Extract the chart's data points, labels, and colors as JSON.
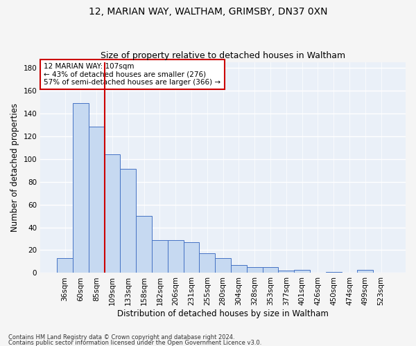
{
  "title1": "12, MARIAN WAY, WALTHAM, GRIMSBY, DN37 0XN",
  "title2": "Size of property relative to detached houses in Waltham",
  "xlabel": "Distribution of detached houses by size in Waltham",
  "ylabel": "Number of detached properties",
  "footer1": "Contains HM Land Registry data © Crown copyright and database right 2024.",
  "footer2": "Contains public sector information licensed under the Open Government Licence v3.0.",
  "categories": [
    "36sqm",
    "60sqm",
    "85sqm",
    "109sqm",
    "133sqm",
    "158sqm",
    "182sqm",
    "206sqm",
    "231sqm",
    "255sqm",
    "280sqm",
    "304sqm",
    "328sqm",
    "353sqm",
    "377sqm",
    "401sqm",
    "426sqm",
    "450sqm",
    "474sqm",
    "499sqm",
    "523sqm"
  ],
  "values": [
    13,
    149,
    128,
    104,
    91,
    50,
    29,
    29,
    27,
    17,
    13,
    7,
    5,
    5,
    2,
    3,
    0,
    1,
    0,
    3,
    0
  ],
  "bar_color": "#c6d9f1",
  "bar_edge_color": "#4472c4",
  "vline_color": "#cc0000",
  "annotation_text": "12 MARIAN WAY: 107sqm\n← 43% of detached houses are smaller (276)\n57% of semi-detached houses are larger (366) →",
  "annotation_box_color": "#ffffff",
  "annotation_box_edge": "#cc0000",
  "ylim": [
    0,
    185
  ],
  "yticks": [
    0,
    20,
    40,
    60,
    80,
    100,
    120,
    140,
    160,
    180
  ],
  "bg_color": "#eaf0f8",
  "grid_color": "#ffffff",
  "title1_fontsize": 10,
  "title2_fontsize": 9,
  "xlabel_fontsize": 8.5,
  "ylabel_fontsize": 8.5,
  "tick_fontsize": 7.5,
  "annotation_fontsize": 7.5,
  "footer_fontsize": 6.0
}
